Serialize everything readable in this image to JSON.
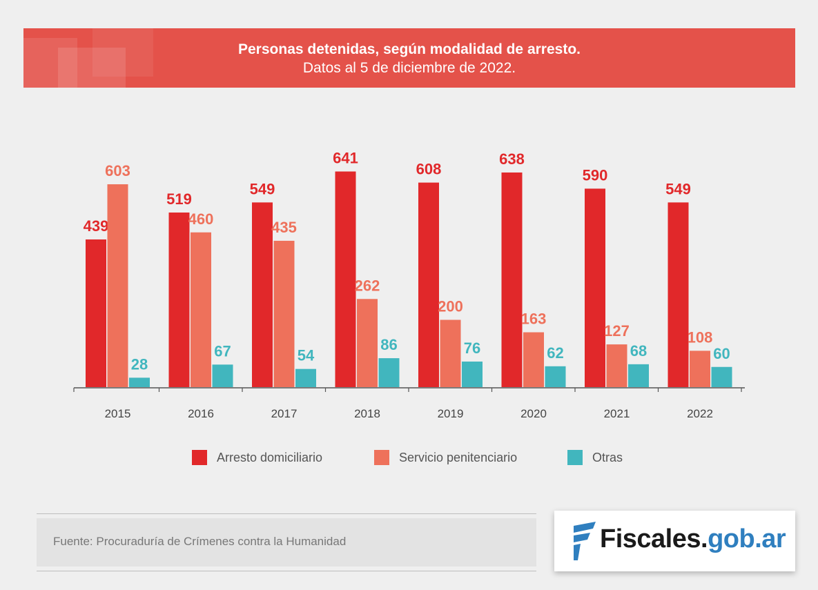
{
  "header": {
    "title": "Personas detenidas, según modalidad de arresto.",
    "subtitle": "Datos al 5 de diciembre de 2022."
  },
  "chart_data": {
    "type": "bar",
    "categories": [
      "2015",
      "2016",
      "2017",
      "2018",
      "2019",
      "2020",
      "2021",
      "2022"
    ],
    "series": [
      {
        "name": "Arresto domiciliario",
        "color": "#e1282a",
        "values": [
          439,
          519,
          549,
          641,
          608,
          638,
          590,
          549
        ]
      },
      {
        "name": "Servicio penitenciario",
        "color": "#ee715b",
        "values": [
          603,
          460,
          435,
          262,
          200,
          163,
          127,
          108
        ]
      },
      {
        "name": "Otras",
        "color": "#41b6be",
        "values": [
          28,
          67,
          54,
          86,
          76,
          62,
          68,
          60
        ]
      }
    ],
    "legend_position": "bottom",
    "grid": false
  },
  "footer": {
    "source": "Fuente: Procuraduría de Crímenes contra la Humanidad",
    "logo_part1": "Fiscales.",
    "logo_part2": "gob.ar",
    "logo_icon": "fiscales-logo-icon"
  }
}
